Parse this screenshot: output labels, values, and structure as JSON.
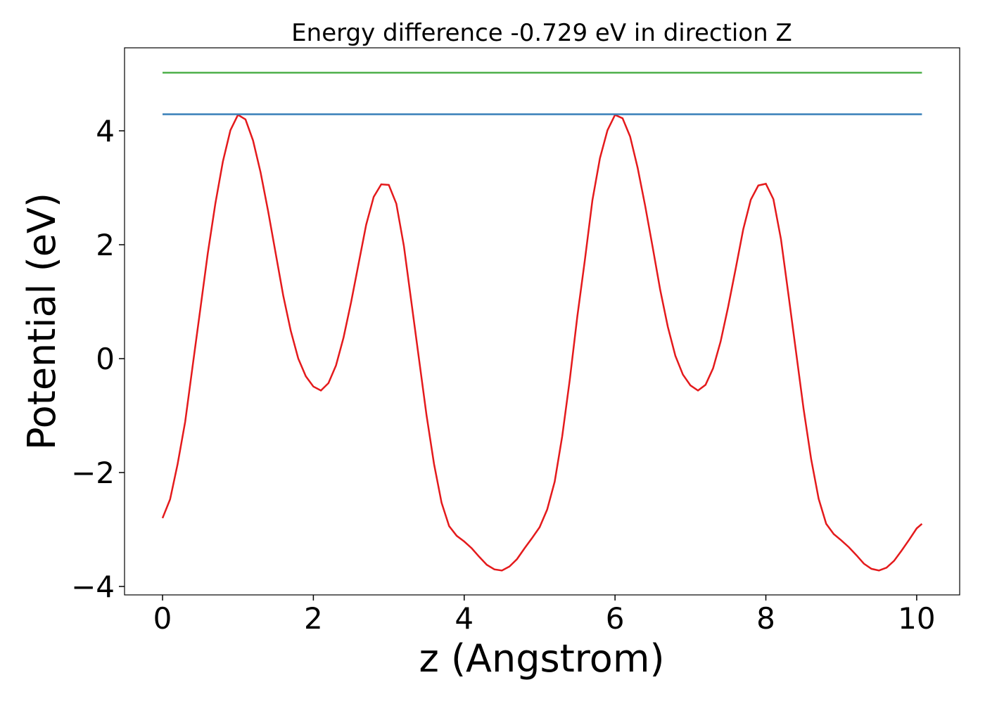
{
  "chart_data": {
    "type": "line",
    "title": "Energy difference -0.729 eV in direction Z",
    "xlabel": "z (Angstrom)",
    "ylabel": "Potential (eV)",
    "xlim": [
      -0.504,
      10.57
    ],
    "ylim": [
      -4.148,
      5.457
    ],
    "xticks": [
      0,
      2,
      4,
      6,
      8,
      10
    ],
    "yticks": [
      {
        "value": -4,
        "label": "−4"
      },
      {
        "value": -2,
        "label": "−2"
      },
      0,
      2,
      4
    ],
    "series": [
      {
        "color": "#e41a1c",
        "x": [
          0,
          0.1,
          0.2,
          0.3,
          0.4,
          0.5,
          0.6,
          0.7,
          0.8,
          0.9,
          1.0,
          1.1,
          1.2,
          1.3,
          1.4,
          1.5,
          1.6,
          1.7,
          1.8,
          1.9,
          2.0,
          2.1,
          2.2,
          2.3,
          2.4,
          2.5,
          2.6,
          2.7,
          2.8,
          2.9,
          3.0,
          3.1,
          3.2,
          3.3,
          3.4,
          3.5,
          3.6,
          3.7,
          3.8,
          3.9,
          4.0,
          4.1,
          4.2,
          4.3,
          4.4,
          4.5,
          4.6,
          4.7,
          4.8,
          4.9,
          5.0,
          5.1,
          5.2,
          5.3,
          5.4,
          5.5,
          5.6,
          5.7,
          5.8,
          5.9,
          6.0,
          6.1,
          6.2,
          6.3,
          6.4,
          6.5,
          6.6,
          6.7,
          6.8,
          6.9,
          7.0,
          7.1,
          7.2,
          7.3,
          7.4,
          7.5,
          7.6,
          7.7,
          7.8,
          7.9,
          8.0,
          8.1,
          8.2,
          8.3,
          8.4,
          8.5,
          8.6,
          8.7,
          8.8,
          8.9,
          9.0,
          9.1,
          9.2,
          9.3,
          9.4,
          9.5,
          9.6,
          9.7,
          9.8,
          9.9,
          10.0,
          10.07
        ],
        "values": [
          -2.8,
          -2.47,
          -1.85,
          -1.11,
          -0.12,
          0.86,
          1.85,
          2.72,
          3.46,
          4.01,
          4.28,
          4.2,
          3.83,
          3.27,
          2.59,
          1.85,
          1.11,
          0.49,
          0.0,
          -0.31,
          -0.49,
          -0.56,
          -0.43,
          -0.12,
          0.37,
          0.99,
          1.67,
          2.35,
          2.84,
          3.06,
          3.05,
          2.72,
          1.98,
          0.99,
          0.0,
          -0.99,
          -1.85,
          -2.53,
          -2.94,
          -3.11,
          -3.21,
          -3.33,
          -3.48,
          -3.62,
          -3.7,
          -3.72,
          -3.65,
          -3.52,
          -3.33,
          -3.15,
          -2.96,
          -2.65,
          -2.16,
          -1.36,
          -0.37,
          0.74,
          1.73,
          2.78,
          3.52,
          4.01,
          4.28,
          4.22,
          3.9,
          3.35,
          2.68,
          1.95,
          1.2,
          0.56,
          0.05,
          -0.28,
          -0.47,
          -0.56,
          -0.46,
          -0.17,
          0.3,
          0.91,
          1.58,
          2.27,
          2.79,
          3.04,
          3.07,
          2.8,
          2.1,
          1.12,
          0.12,
          -0.88,
          -1.76,
          -2.46,
          -2.9,
          -3.08,
          -3.19,
          -3.31,
          -3.45,
          -3.6,
          -3.69,
          -3.72,
          -3.67,
          -3.55,
          -3.37,
          -3.18,
          -2.98,
          -2.9
        ]
      },
      {
        "color": "#377eb8",
        "x": [
          0,
          10.07
        ],
        "values": [
          4.29,
          4.29
        ]
      },
      {
        "color": "#4daf4a",
        "x": [
          0,
          10.07
        ],
        "values": [
          5.02,
          5.02
        ]
      }
    ]
  }
}
